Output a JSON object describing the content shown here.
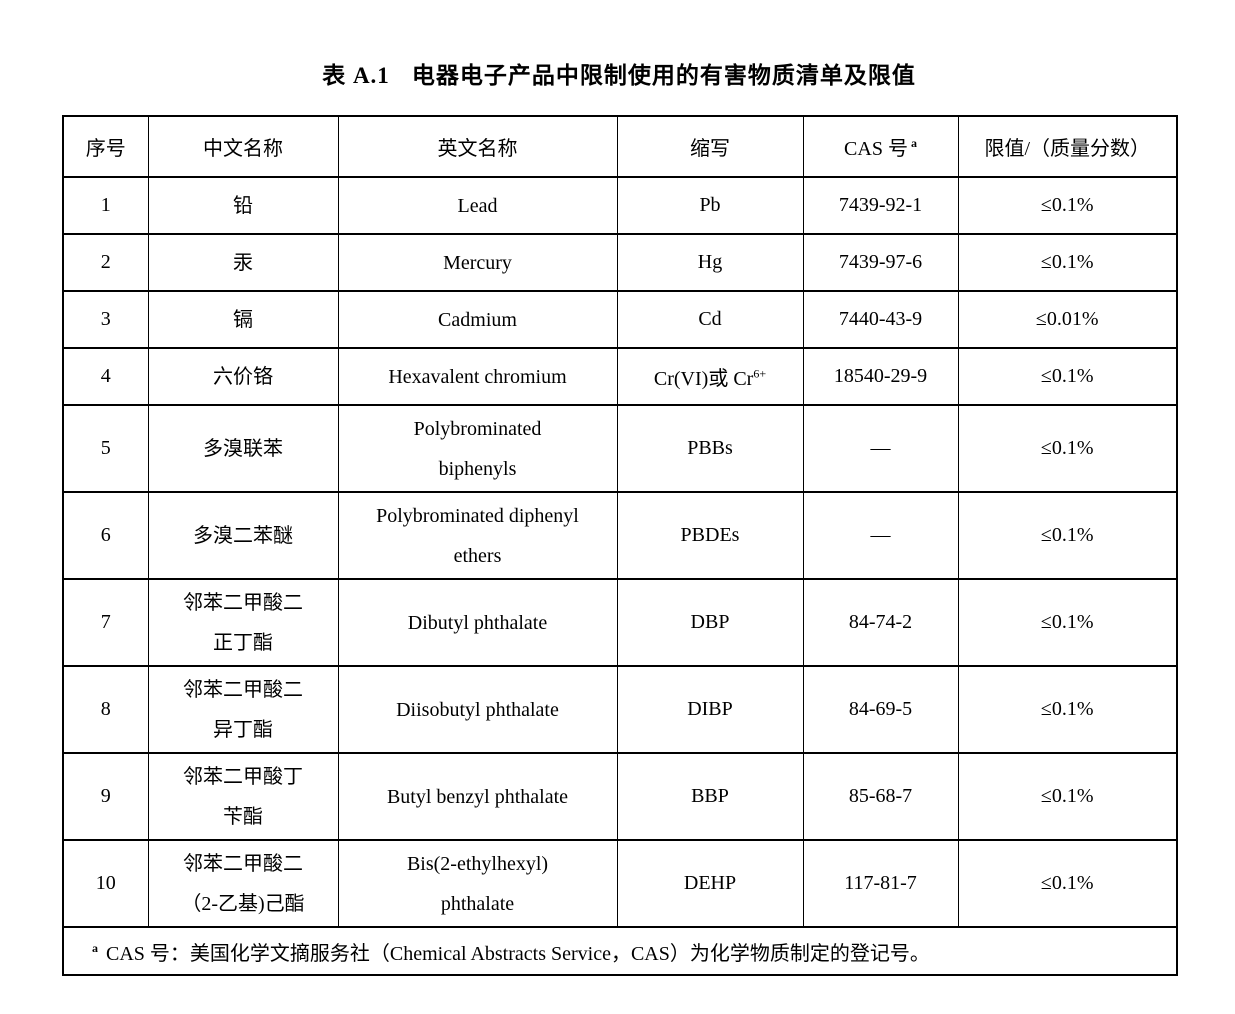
{
  "title": {
    "label": "表 A.1",
    "text": "电器电子产品中限制使用的有害物质清单及限值"
  },
  "table": {
    "headers": [
      "序号",
      "中文名称",
      "英文名称",
      "缩写",
      "CAS 号",
      "限值/（质量分数）"
    ],
    "cas_header_superscript": "a",
    "rows": [
      {
        "no": "1",
        "cn": [
          "铅"
        ],
        "en": [
          "Lead"
        ],
        "abbr": "Pb",
        "abbr_sup": "",
        "cas": "7439-92-1",
        "limit": "≤0.1%"
      },
      {
        "no": "2",
        "cn": [
          "汞"
        ],
        "en": [
          "Mercury"
        ],
        "abbr": "Hg",
        "abbr_sup": "",
        "cas": "7439-97-6",
        "limit": "≤0.1%"
      },
      {
        "no": "3",
        "cn": [
          "镉"
        ],
        "en": [
          "Cadmium"
        ],
        "abbr": "Cd",
        "abbr_sup": "",
        "cas": "7440-43-9",
        "limit": "≤0.01%"
      },
      {
        "no": "4",
        "cn": [
          "六价铬"
        ],
        "en": [
          "Hexavalent chromium"
        ],
        "abbr": "Cr(VI)或 Cr",
        "abbr_sup": "6+",
        "cas": "18540-29-9",
        "limit": "≤0.1%"
      },
      {
        "no": "5",
        "cn": [
          "多溴联苯"
        ],
        "en": [
          "Polybrominated",
          "biphenyls"
        ],
        "abbr": "PBBs",
        "abbr_sup": "",
        "cas": "—",
        "limit": "≤0.1%"
      },
      {
        "no": "6",
        "cn": [
          "多溴二苯醚"
        ],
        "en": [
          "Polybrominated diphenyl",
          "ethers"
        ],
        "abbr": "PBDEs",
        "abbr_sup": "",
        "cas": "—",
        "limit": "≤0.1%"
      },
      {
        "no": "7",
        "cn": [
          "邻苯二甲酸二",
          "正丁酯"
        ],
        "en": [
          "Dibutyl phthalate"
        ],
        "abbr": "DBP",
        "abbr_sup": "",
        "cas": "84-74-2",
        "limit": "≤0.1%"
      },
      {
        "no": "8",
        "cn": [
          "邻苯二甲酸二",
          "异丁酯"
        ],
        "en": [
          "Diisobutyl phthalate"
        ],
        "abbr": "DIBP",
        "abbr_sup": "",
        "cas": "84-69-5",
        "limit": "≤0.1%"
      },
      {
        "no": "9",
        "cn": [
          "邻苯二甲酸丁",
          "苄酯"
        ],
        "en": [
          "Butyl benzyl phthalate"
        ],
        "abbr": "BBP",
        "abbr_sup": "",
        "cas": "85-68-7",
        "limit": "≤0.1%"
      },
      {
        "no": "10",
        "cn": [
          "邻苯二甲酸二",
          "（2-乙基)己酯"
        ],
        "en": [
          "Bis(2-ethylhexyl)",
          "phthalate"
        ],
        "abbr": "DEHP",
        "abbr_sup": "",
        "cas": "117-81-7",
        "limit": "≤0.1%"
      }
    ],
    "footnote": {
      "marker": "a",
      "text": "CAS 号：美国化学文摘服务社（Chemical Abstracts Service，CAS）为化学物质制定的登记号。"
    }
  }
}
